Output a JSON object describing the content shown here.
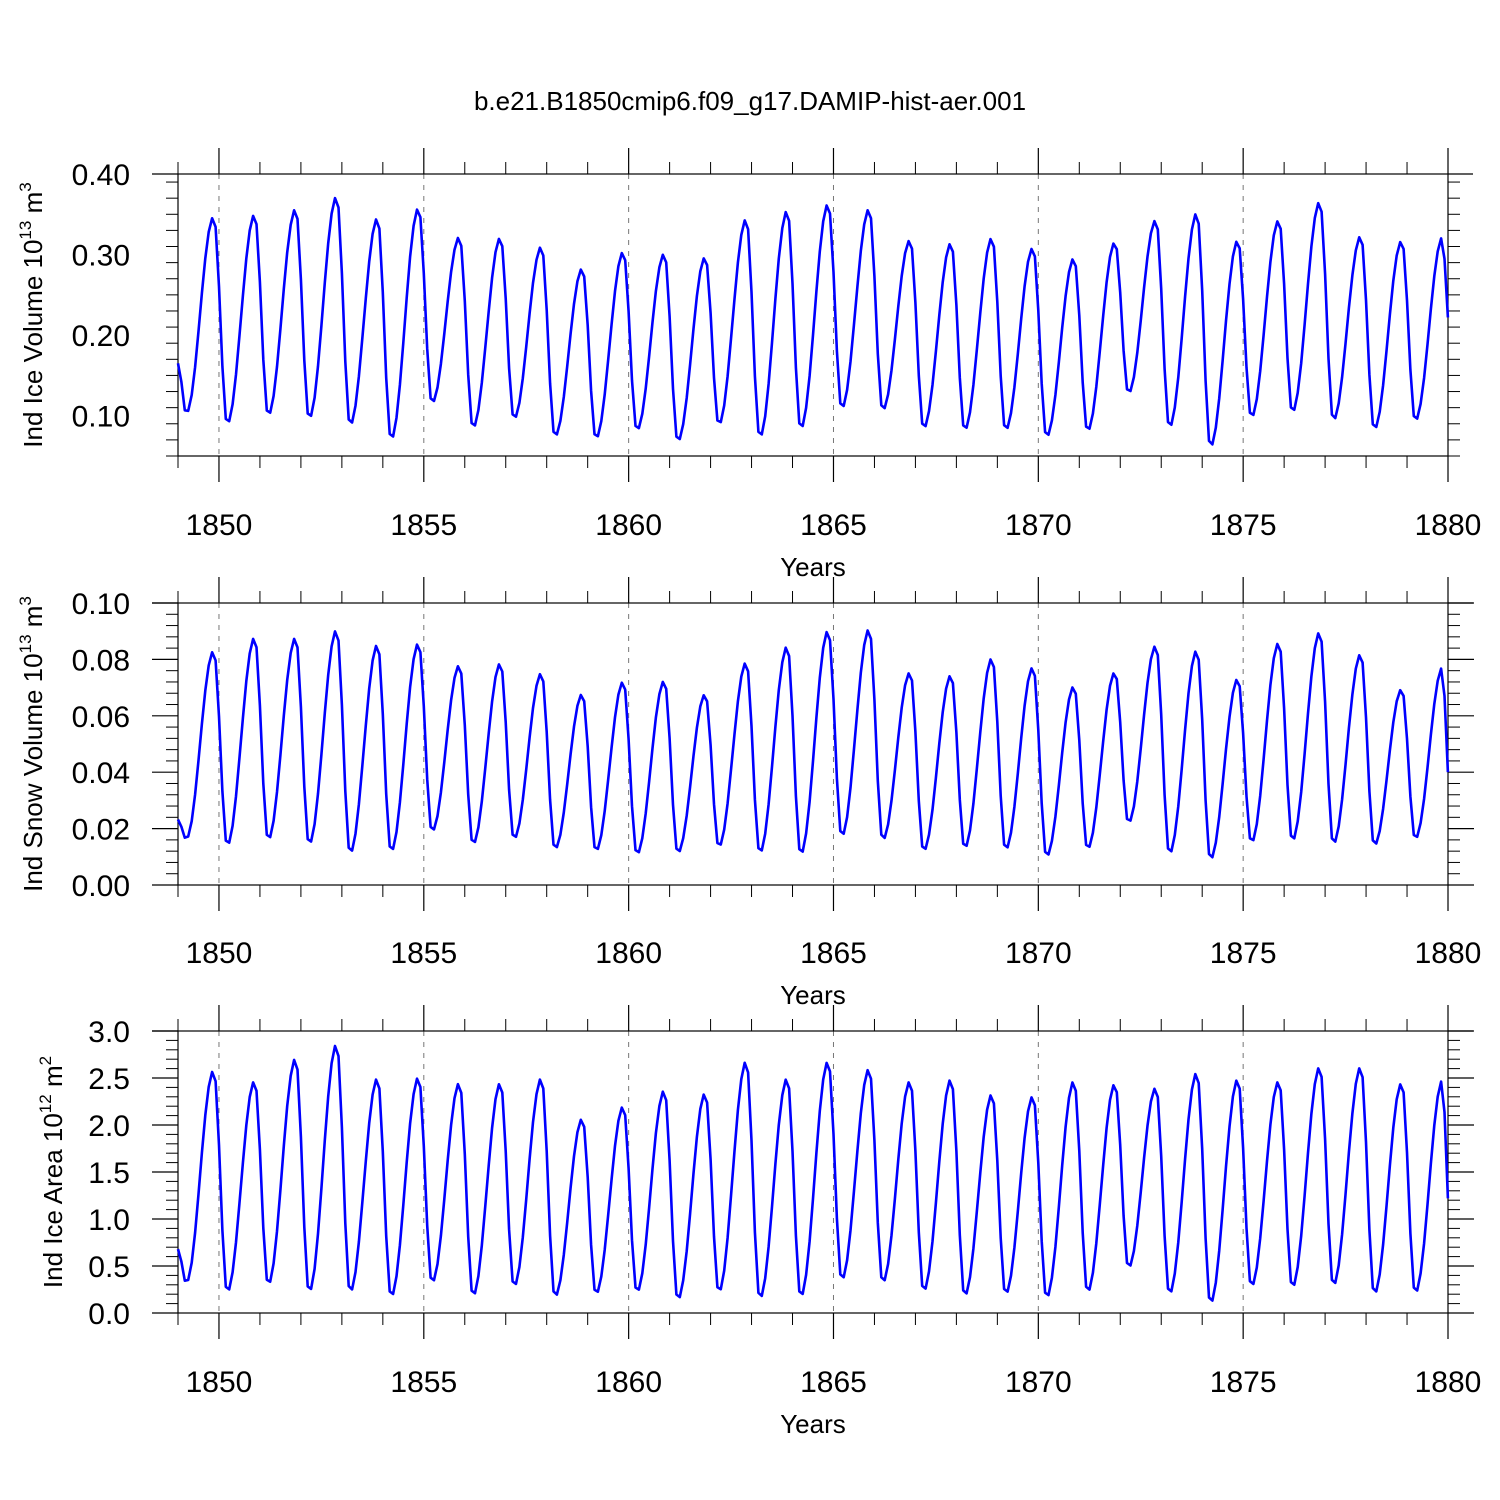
{
  "title": "b.e21.B1850cmip6.f09_g17.DAMIP-hist-aer.001",
  "colors": {
    "series": "#0000ff",
    "axes": "#000000",
    "grid": "#777777"
  },
  "chart_data": [
    {
      "type": "line",
      "ylabel": {
        "prefix": "Ind Ice Volume 10",
        "exp": "13",
        "unit": " m",
        "unit_exp": "3"
      },
      "xlabel": "Years",
      "xlim": [
        1849,
        1880
      ],
      "ylim": [
        0.05,
        0.4
      ],
      "xticks": [
        "1850",
        "1855",
        "1860",
        "1865",
        "1870",
        "1875",
        "1880"
      ],
      "yticks": [
        "0.10",
        "0.20",
        "0.30",
        "0.40"
      ],
      "ytick_values": [
        0.1,
        0.2,
        0.3,
        0.4
      ],
      "grid": "dashed vertical lines at 5-year ticks",
      "x_start": 1849.0,
      "x_step": 0.08333,
      "monthly_x_start_note": "",
      "min_values": [
        0.1026,
        0.0896,
        0.1002,
        0.0962,
        0.0881,
        0.0703,
        0.1155,
        0.0848,
        0.0959,
        0.074,
        0.0715,
        0.0817,
        0.068,
        0.0887,
        0.073,
        0.0835,
        0.1088,
        0.1066,
        0.084,
        0.0819,
        0.082,
        0.0735,
        0.0808,
        0.1278,
        0.0853,
        0.061,
        0.0978,
        0.1039,
        0.0941,
        0.0829,
        0.0935
      ],
      "max_values": [
        0.3468,
        0.3499,
        0.3568,
        0.3721,
        0.3455,
        0.358,
        0.3221,
        0.3212,
        0.3101,
        0.2829,
        0.3036,
        0.3014,
        0.297,
        0.3443,
        0.3548,
        0.363,
        0.3568,
        0.3183,
        0.3145,
        0.321,
        0.3087,
        0.2956,
        0.3154,
        0.3432,
        0.3519,
        0.3179,
        0.3431,
        0.3658,
        0.3232,
        0.3173,
        0.3219
      ],
      "start_value": 0.165,
      "end_value": 0.222
    },
    {
      "type": "line",
      "ylabel": {
        "prefix": "Ind Snow Volume 10",
        "exp": "13",
        "unit": " m",
        "unit_exp": "3"
      },
      "xlabel": "Years",
      "xlim": [
        1849,
        1880
      ],
      "ylim": [
        0.0,
        0.1
      ],
      "xticks": [
        "1850",
        "1855",
        "1860",
        "1865",
        "1870",
        "1875",
        "1880"
      ],
      "yticks": [
        "0.00",
        "0.02",
        "0.04",
        "0.06",
        "0.08",
        "0.10"
      ],
      "ytick_values": [
        0.0,
        0.02,
        0.04,
        0.06,
        0.08,
        0.1
      ],
      "grid": "dashed vertical lines at 5-year ticks",
      "x_start": 1849.0,
      "x_step": 0.08333,
      "min_values": [
        0.0163,
        0.014,
        0.016,
        0.0144,
        0.0112,
        0.0118,
        0.0189,
        0.0144,
        0.0163,
        0.0127,
        0.012,
        0.0108,
        0.0113,
        0.0135,
        0.0113,
        0.0108,
        0.0172,
        0.0159,
        0.012,
        0.013,
        0.0125,
        0.01,
        0.0127,
        0.022,
        0.011,
        0.009,
        0.015,
        0.0156,
        0.0145,
        0.014,
        0.0163
      ],
      "max_values": [
        0.083,
        0.0878,
        0.0878,
        0.0905,
        0.0853,
        0.0858,
        0.078,
        0.0787,
        0.0752,
        0.0678,
        0.0722,
        0.0725,
        0.0677,
        0.079,
        0.0847,
        0.0903,
        0.0908,
        0.0755,
        0.0745,
        0.0805,
        0.0773,
        0.0705,
        0.0755,
        0.085,
        0.0833,
        0.0732,
        0.086,
        0.0898,
        0.082,
        0.0695,
        0.0772
      ],
      "start_value": 0.0232,
      "end_value": 0.04
    },
    {
      "type": "line",
      "ylabel": {
        "prefix": "Ind Ice Area 10",
        "exp": "12",
        "unit": " m",
        "unit_exp": "2"
      },
      "xlabel": "Years",
      "xlim": [
        1849,
        1880
      ],
      "ylim": [
        0.0,
        3.0
      ],
      "xticks": [
        "1850",
        "1855",
        "1860",
        "1865",
        "1870",
        "1875",
        "1880"
      ],
      "yticks": [
        "0.0",
        "0.5",
        "1.0",
        "1.5",
        "2.0",
        "2.5",
        "3.0"
      ],
      "ytick_values": [
        0.0,
        0.5,
        1.0,
        1.5,
        2.0,
        2.5,
        3.0
      ],
      "grid": "dashed vertical lines at 5-year ticks",
      "x_start": 1849.0,
      "x_step": 0.08333,
      "min_values": [
        0.32,
        0.22,
        0.3,
        0.22,
        0.22,
        0.17,
        0.32,
        0.18,
        0.28,
        0.17,
        0.2,
        0.22,
        0.14,
        0.22,
        0.15,
        0.17,
        0.35,
        0.32,
        0.23,
        0.18,
        0.2,
        0.16,
        0.22,
        0.48,
        0.2,
        0.1,
        0.28,
        0.27,
        0.29,
        0.2,
        0.21
      ],
      "max_values": [
        2.58,
        2.47,
        2.71,
        2.86,
        2.5,
        2.51,
        2.45,
        2.45,
        2.5,
        2.07,
        2.2,
        2.37,
        2.34,
        2.68,
        2.5,
        2.68,
        2.6,
        2.47,
        2.49,
        2.33,
        2.31,
        2.47,
        2.44,
        2.4,
        2.56,
        2.49,
        2.47,
        2.62,
        2.62,
        2.45,
        2.48
      ],
      "start_value": 0.68,
      "end_value": 1.22
    }
  ]
}
